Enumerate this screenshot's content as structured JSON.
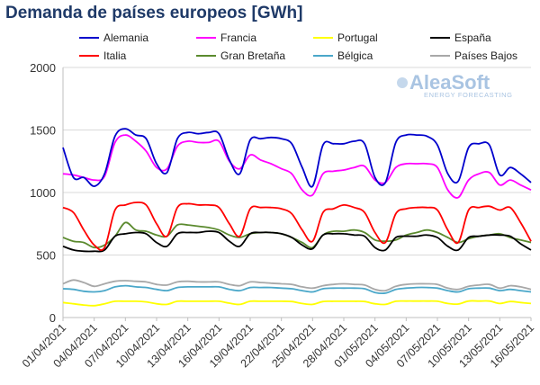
{
  "title": "Demanda de países europeos [GWh]",
  "logo": {
    "name": "AleaSoft",
    "tagline": "ENERGY FORECASTING"
  },
  "chart_data": {
    "type": "line",
    "title": "Demanda de países europeos [GWh]",
    "xlabel": "",
    "ylabel": "",
    "ylim": [
      0,
      2000
    ],
    "yticks": [
      0,
      500,
      1000,
      1500,
      2000
    ],
    "grid": true,
    "legend_position": "top",
    "x_start": "01/04/2021",
    "x_ticks": [
      "01/04/2021",
      "04/04/2021",
      "07/04/2021",
      "10/04/2021",
      "13/04/2021",
      "16/04/2021",
      "19/04/2021",
      "22/04/2021",
      "25/04/2021",
      "28/04/2021",
      "01/05/2021",
      "04/05/2021",
      "07/05/2021",
      "10/05/2021",
      "13/05/2021",
      "16/05/2021"
    ],
    "x": [
      "01/04/2021",
      "02/04/2021",
      "03/04/2021",
      "04/04/2021",
      "05/04/2021",
      "06/04/2021",
      "07/04/2021",
      "08/04/2021",
      "09/04/2021",
      "10/04/2021",
      "11/04/2021",
      "12/04/2021",
      "13/04/2021",
      "14/04/2021",
      "15/04/2021",
      "16/04/2021",
      "17/04/2021",
      "18/04/2021",
      "19/04/2021",
      "20/04/2021",
      "21/04/2021",
      "22/04/2021",
      "23/04/2021",
      "24/04/2021",
      "25/04/2021",
      "26/04/2021",
      "27/04/2021",
      "28/04/2021",
      "29/04/2021",
      "30/04/2021",
      "01/05/2021",
      "02/05/2021",
      "03/05/2021",
      "04/05/2021",
      "05/05/2021",
      "06/05/2021",
      "07/05/2021",
      "08/05/2021",
      "09/05/2021",
      "10/05/2021",
      "11/05/2021",
      "12/05/2021",
      "13/05/2021",
      "14/05/2021",
      "15/05/2021",
      "16/05/2021"
    ],
    "series": [
      {
        "name": "Alemania",
        "color": "#0000cc",
        "values": [
          1360,
          1120,
          1120,
          1050,
          1150,
          1450,
          1510,
          1460,
          1430,
          1230,
          1160,
          1430,
          1480,
          1470,
          1480,
          1470,
          1260,
          1150,
          1420,
          1430,
          1440,
          1430,
          1390,
          1200,
          1050,
          1380,
          1390,
          1390,
          1410,
          1390,
          1120,
          1080,
          1400,
          1460,
          1460,
          1450,
          1380,
          1150,
          1090,
          1360,
          1390,
          1380,
          1140,
          1200,
          1150,
          1080
        ]
      },
      {
        "name": "Francia",
        "color": "#ff00ff",
        "values": [
          1150,
          1140,
          1120,
          1100,
          1130,
          1400,
          1460,
          1410,
          1330,
          1200,
          1190,
          1370,
          1410,
          1400,
          1400,
          1410,
          1250,
          1190,
          1300,
          1260,
          1230,
          1190,
          1150,
          1020,
          980,
          1150,
          1170,
          1180,
          1200,
          1210,
          1100,
          1080,
          1200,
          1230,
          1230,
          1230,
          1200,
          1020,
          960,
          1100,
          1150,
          1160,
          1060,
          1100,
          1060,
          1020
        ]
      },
      {
        "name": "Portugal",
        "color": "#ffff00",
        "values": [
          120,
          110,
          100,
          95,
          110,
          130,
          130,
          130,
          125,
          110,
          105,
          130,
          130,
          130,
          130,
          130,
          115,
          105,
          130,
          130,
          130,
          130,
          128,
          112,
          105,
          128,
          130,
          130,
          130,
          128,
          110,
          105,
          130,
          132,
          132,
          132,
          130,
          112,
          108,
          132,
          132,
          132,
          112,
          128,
          120,
          112
        ]
      },
      {
        "name": "España",
        "color": "#000000",
        "values": [
          570,
          540,
          530,
          530,
          540,
          650,
          670,
          680,
          670,
          600,
          570,
          670,
          680,
          680,
          690,
          680,
          610,
          570,
          670,
          680,
          680,
          670,
          640,
          580,
          550,
          660,
          670,
          670,
          660,
          650,
          560,
          540,
          640,
          650,
          650,
          660,
          640,
          570,
          540,
          640,
          650,
          660,
          660,
          650,
          590,
          540
        ]
      },
      {
        "name": "Italia",
        "color": "#ff0000",
        "values": [
          880,
          840,
          700,
          580,
          560,
          860,
          900,
          920,
          900,
          750,
          650,
          880,
          910,
          900,
          900,
          880,
          750,
          650,
          870,
          880,
          880,
          870,
          830,
          700,
          610,
          840,
          870,
          900,
          880,
          840,
          680,
          600,
          830,
          870,
          880,
          880,
          860,
          700,
          600,
          860,
          880,
          890,
          860,
          880,
          760,
          610
        ]
      },
      {
        "name": "Gran Bretaña",
        "color": "#5b8a2e",
        "values": [
          640,
          610,
          600,
          560,
          580,
          650,
          760,
          700,
          690,
          660,
          650,
          740,
          740,
          730,
          720,
          700,
          660,
          640,
          670,
          680,
          680,
          670,
          640,
          600,
          560,
          660,
          690,
          690,
          700,
          680,
          620,
          610,
          620,
          660,
          680,
          700,
          680,
          640,
          600,
          630,
          650,
          660,
          670,
          640,
          620,
          600
        ]
      },
      {
        "name": "Bélgica",
        "color": "#4aa7c9",
        "values": [
          230,
          225,
          210,
          205,
          215,
          245,
          255,
          245,
          240,
          225,
          215,
          240,
          245,
          245,
          245,
          245,
          225,
          215,
          240,
          240,
          240,
          235,
          230,
          215,
          205,
          230,
          235,
          235,
          235,
          230,
          200,
          195,
          225,
          235,
          240,
          240,
          235,
          215,
          205,
          230,
          235,
          235,
          215,
          225,
          215,
          205
        ]
      },
      {
        "name": "Países Bajos",
        "color": "#a8a8a8",
        "values": [
          270,
          300,
          280,
          250,
          270,
          290,
          295,
          290,
          285,
          265,
          260,
          285,
          290,
          285,
          285,
          285,
          265,
          255,
          285,
          280,
          275,
          270,
          265,
          245,
          235,
          255,
          265,
          270,
          265,
          260,
          225,
          215,
          250,
          265,
          270,
          270,
          265,
          235,
          225,
          250,
          260,
          265,
          235,
          255,
          245,
          225
        ]
      }
    ]
  }
}
